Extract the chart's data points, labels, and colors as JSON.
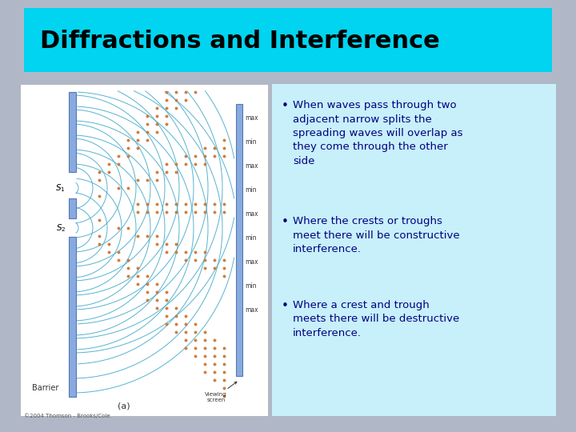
{
  "background_color": "#b0b8c8",
  "title": "Diffractions and Interference",
  "title_bg_color": "#00d4f0",
  "title_text_color": "#000000",
  "content_bg_color": "#c8f0fa",
  "image_bg_color": "#ffffff",
  "bullet_text_color": "#000080",
  "image_caption": "(a)",
  "image_credit": "©2004 Thomson - Brooks/Cole",
  "figsize": [
    7.2,
    5.4
  ],
  "dpi": 100
}
